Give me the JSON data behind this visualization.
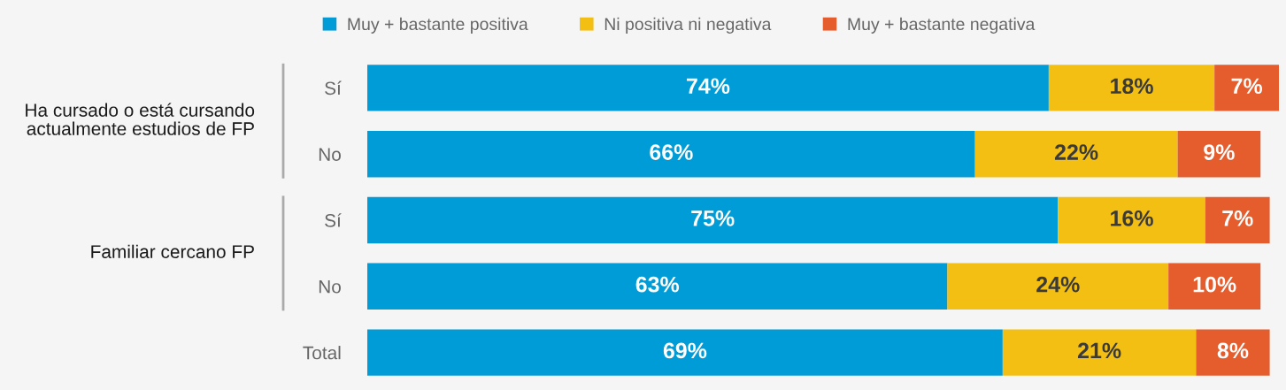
{
  "chart_data": {
    "type": "bar",
    "orientation": "horizontal",
    "stacked": true,
    "categories": [
      "Sí",
      "No",
      "Sí",
      "No",
      "Total"
    ],
    "series": [
      {
        "name": "Muy + bastante positiva",
        "color": "#009cd7",
        "values": [
          74,
          66,
          75,
          63,
          69
        ],
        "value_labels": [
          "74%",
          "66%",
          "75%",
          "63%",
          "69%"
        ]
      },
      {
        "name": "Ni positiva ni negativa",
        "color": "#f4bf13",
        "values": [
          18,
          22,
          16,
          24,
          21
        ],
        "value_labels": [
          "18%",
          "22%",
          "16%",
          "24%",
          "21%"
        ]
      },
      {
        "name": "Muy + bastante negativa",
        "color": "#e55c2d",
        "values": [
          7,
          9,
          7,
          10,
          8
        ],
        "value_labels": [
          "7%",
          "9%",
          "7%",
          "10%",
          "8%"
        ]
      }
    ],
    "annotations": [
      "Ha cursado o está cursando\nactualmente estudios de FP",
      "Familiar cercano FP"
    ],
    "xlim": [
      0,
      99
    ],
    "tick_labels": "y",
    "legend": "top"
  }
}
